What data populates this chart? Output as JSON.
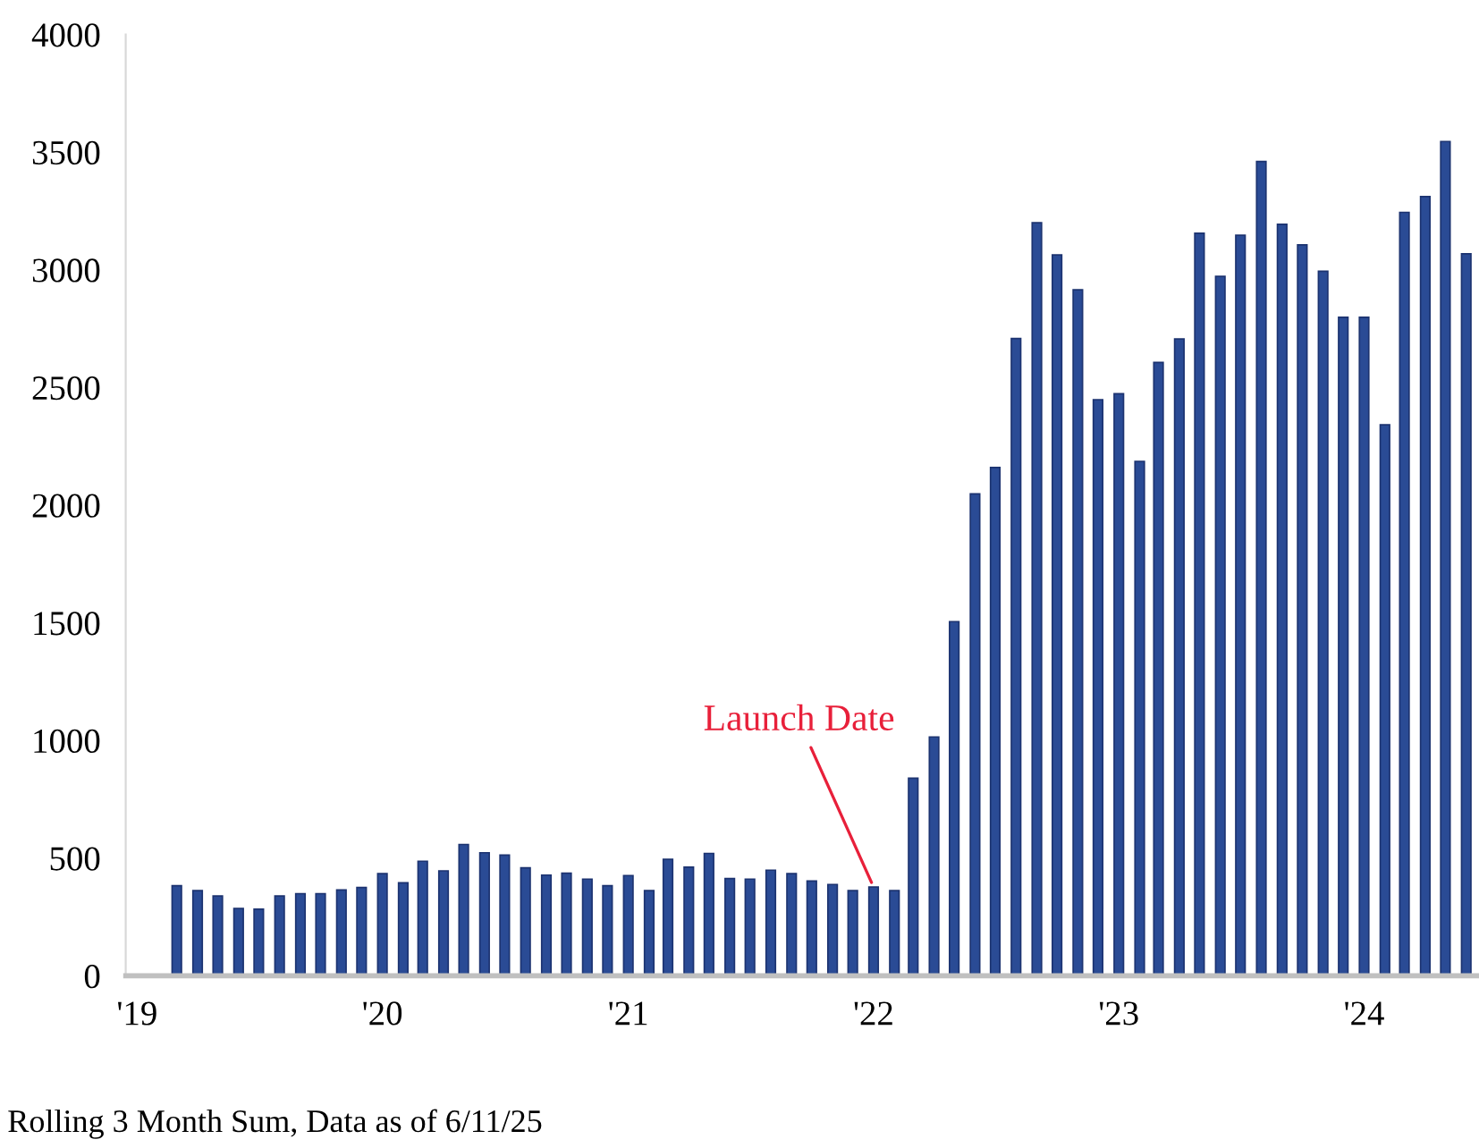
{
  "chart_data": {
    "type": "bar",
    "x": [
      "2019-03",
      "2019-04",
      "2019-05",
      "2019-06",
      "2019-07",
      "2019-08",
      "2019-09",
      "2019-10",
      "2019-11",
      "2019-12",
      "2020-01",
      "2020-02",
      "2020-03",
      "2020-04",
      "2020-05",
      "2020-06",
      "2020-07",
      "2020-08",
      "2020-09",
      "2020-10",
      "2020-11",
      "2020-12",
      "2021-01",
      "2021-02",
      "2021-03",
      "2021-04",
      "2021-05",
      "2021-06",
      "2021-07",
      "2021-08",
      "2021-09",
      "2021-10",
      "2021-11",
      "2021-12",
      "2022-01",
      "2022-02",
      "2022-03",
      "2022-04",
      "2022-05",
      "2022-06",
      "2022-07",
      "2022-08",
      "2022-09",
      "2022-10",
      "2022-11",
      "2022-12",
      "2023-01",
      "2023-02",
      "2023-03",
      "2023-04",
      "2023-05",
      "2023-06",
      "2023-07",
      "2023-08",
      "2023-09",
      "2023-10",
      "2023-11",
      "2023-12",
      "2024-01",
      "2024-02",
      "2024-03",
      "2024-04",
      "2024-05",
      "2024-06"
    ],
    "values": [
      383,
      362,
      339,
      286,
      283,
      339,
      349,
      349,
      365,
      375,
      434,
      395,
      487,
      446,
      558,
      523,
      513,
      459,
      428,
      436,
      411,
      383,
      426,
      362,
      495,
      462,
      520,
      413,
      411,
      449,
      434,
      403,
      388,
      362,
      377,
      362,
      840,
      1015,
      1505,
      2048,
      2160,
      2708,
      3200,
      3063,
      2915,
      2448,
      2473,
      2186,
      2606,
      2706,
      3155,
      2972,
      3147,
      3460,
      3193,
      3106,
      2994,
      2798,
      2798,
      2341,
      3244,
      3311,
      3545,
      3068
    ],
    "color": "#2a4b95",
    "ylim": [
      0,
      4000
    ],
    "yticks": [
      0,
      500,
      1000,
      1500,
      2000,
      2500,
      3000,
      3500,
      4000
    ],
    "xlim": [
      "2018-12-15",
      "2024-06-20"
    ],
    "xticks": [
      {
        "value": "2019-01",
        "label": "'19"
      },
      {
        "value": "2020-01",
        "label": "'20"
      },
      {
        "value": "2021-01",
        "label": "'21"
      },
      {
        "value": "2022-01",
        "label": "'22"
      },
      {
        "value": "2023-01",
        "label": "'23"
      },
      {
        "value": "2024-01",
        "label": "'24"
      }
    ],
    "grid": false,
    "annotations": [
      {
        "text": "Launch Date",
        "x": "2022-01",
        "y": 377
      },
      "Rolling 3 Month Sum, Data as of 6/11/25"
    ]
  }
}
